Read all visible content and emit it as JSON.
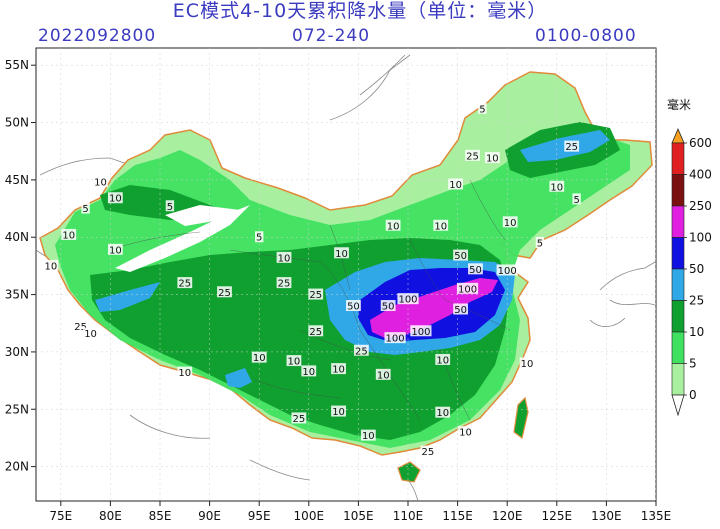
{
  "title": "EC模式4-10天累积降水量（单位：毫米）",
  "header": {
    "init_time": "2022092800",
    "forecast_hours": "072-240",
    "range": "0100-0800"
  },
  "map": {
    "lat_labels": [
      "55N",
      "50N",
      "45N",
      "40N",
      "35N",
      "30N",
      "25N",
      "20N"
    ],
    "lon_labels": [
      "75E",
      "80E",
      "85E",
      "90E",
      "95E",
      "100E",
      "105E",
      "110E",
      "115E",
      "120E",
      "125E",
      "130E",
      "135E"
    ]
  },
  "legend": {
    "unit": "毫米",
    "levels": [
      "600",
      "400",
      "250",
      "100",
      "50",
      "25",
      "10",
      "5",
      "0"
    ],
    "colors": [
      "#f5a020",
      "#e02020",
      "#7a1010",
      "#e020e0",
      "#1010e0",
      "#30a8e8",
      "#10a030",
      "#40e060",
      "#a8f0a0"
    ]
  },
  "contour_labels": [
    {
      "text": "5",
      "lon": 117.5,
      "lat": 51.2
    },
    {
      "text": "25",
      "lon": 116.5,
      "lat": 47.1
    },
    {
      "text": "10",
      "lon": 118.5,
      "lat": 46.9
    },
    {
      "text": "25",
      "lon": 126.5,
      "lat": 47.9
    },
    {
      "text": "10",
      "lon": 125.0,
      "lat": 44.4
    },
    {
      "text": "10",
      "lon": 114.8,
      "lat": 44.6
    },
    {
      "text": "5",
      "lon": 127.0,
      "lat": 43.3
    },
    {
      "text": "10",
      "lon": 120.3,
      "lat": 41.3
    },
    {
      "text": "5",
      "lon": 123.3,
      "lat": 39.5
    },
    {
      "text": "10",
      "lon": 79.0,
      "lat": 44.8
    },
    {
      "text": "10",
      "lon": 80.5,
      "lat": 43.4
    },
    {
      "text": "5",
      "lon": 77.5,
      "lat": 42.5
    },
    {
      "text": "5",
      "lon": 86.0,
      "lat": 42.7
    },
    {
      "text": "10",
      "lon": 75.8,
      "lat": 40.2
    },
    {
      "text": "10",
      "lon": 80.5,
      "lat": 38.9
    },
    {
      "text": "10",
      "lon": 74.0,
      "lat": 37.5
    },
    {
      "text": "5",
      "lon": 95.0,
      "lat": 40.0
    },
    {
      "text": "10",
      "lon": 97.5,
      "lat": 38.2
    },
    {
      "text": "10",
      "lon": 103.3,
      "lat": 38.6
    },
    {
      "text": "10",
      "lon": 108.5,
      "lat": 41.0
    },
    {
      "text": "10",
      "lon": 113.3,
      "lat": 41.0
    },
    {
      "text": "50",
      "lon": 115.3,
      "lat": 38.4
    },
    {
      "text": "50",
      "lon": 116.8,
      "lat": 37.2
    },
    {
      "text": "100",
      "lon": 120.0,
      "lat": 37.1
    },
    {
      "text": "25",
      "lon": 87.5,
      "lat": 36.0
    },
    {
      "text": "25",
      "lon": 91.5,
      "lat": 35.2
    },
    {
      "text": "25",
      "lon": 97.5,
      "lat": 36.0
    },
    {
      "text": "25",
      "lon": 100.7,
      "lat": 35.0
    },
    {
      "text": "50",
      "lon": 104.5,
      "lat": 34.0
    },
    {
      "text": "50",
      "lon": 108.0,
      "lat": 34.0
    },
    {
      "text": "100",
      "lon": 110.0,
      "lat": 34.6
    },
    {
      "text": "50",
      "lon": 115.3,
      "lat": 33.7
    },
    {
      "text": "100",
      "lon": 116.0,
      "lat": 35.5
    },
    {
      "text": "100",
      "lon": 108.7,
      "lat": 31.2
    },
    {
      "text": "100",
      "lon": 111.3,
      "lat": 31.8
    },
    {
      "text": "25",
      "lon": 77.0,
      "lat": 32.2
    },
    {
      "text": "10",
      "lon": 78.0,
      "lat": 31.6
    },
    {
      "text": "25",
      "lon": 100.7,
      "lat": 31.8
    },
    {
      "text": "25",
      "lon": 105.3,
      "lat": 30.1
    },
    {
      "text": "10",
      "lon": 95.0,
      "lat": 29.5
    },
    {
      "text": "10",
      "lon": 98.5,
      "lat": 29.2
    },
    {
      "text": "10",
      "lon": 100.0,
      "lat": 28.3
    },
    {
      "text": "10",
      "lon": 103.0,
      "lat": 28.5
    },
    {
      "text": "10",
      "lon": 107.5,
      "lat": 28.0
    },
    {
      "text": "10",
      "lon": 113.5,
      "lat": 29.3
    },
    {
      "text": "10",
      "lon": 87.5,
      "lat": 28.2
    },
    {
      "text": "10",
      "lon": 103.0,
      "lat": 24.8
    },
    {
      "text": "10",
      "lon": 113.5,
      "lat": 24.7
    },
    {
      "text": "25",
      "lon": 99.0,
      "lat": 24.2
    },
    {
      "text": "10",
      "lon": 106.0,
      "lat": 22.7
    },
    {
      "text": "10",
      "lon": 115.8,
      "lat": 23.0
    },
    {
      "text": "25",
      "lon": 112.0,
      "lat": 21.3
    },
    {
      "text": "10",
      "lon": 122.0,
      "lat": 29.0
    }
  ]
}
